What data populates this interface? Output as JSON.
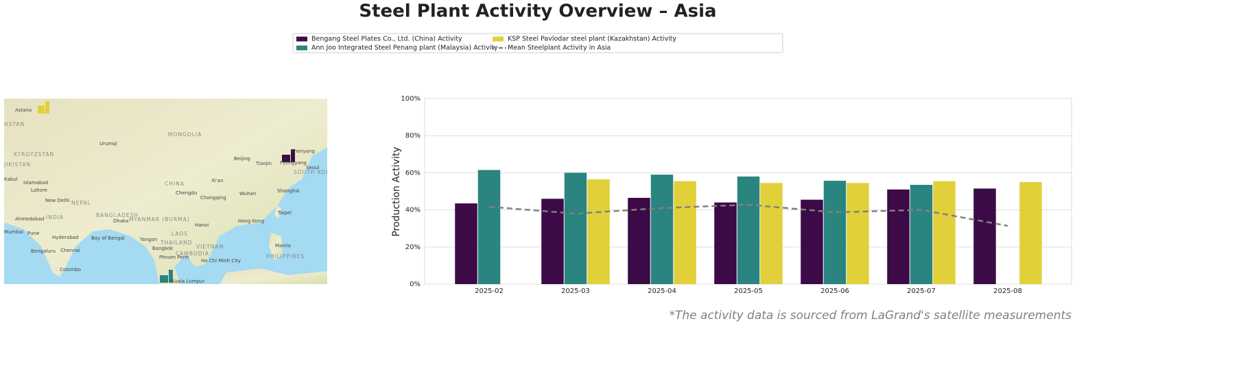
{
  "chart_data": {
    "type": "bar",
    "title": "Steel Plant Activity Overview – Asia",
    "ylabel": "Production Activity",
    "footnote": "*The activity data is sourced from LaGrand's satellite measurements",
    "categories": [
      "2025-02",
      "2025-03",
      "2025-04",
      "2025-05",
      "2025-06",
      "2025-07",
      "2025-08"
    ],
    "series": [
      {
        "name": "Bengang Steel Plates Co., Ltd. (China) Activity",
        "color": "#3c0a47",
        "values": [
          43.5,
          46,
          46.5,
          44,
          45.5,
          51,
          51.5
        ]
      },
      {
        "name": "Ann Joo Integrated Steel Penang plant (Malaysia) Activity",
        "color": "#2a8480",
        "values": [
          61.5,
          60,
          59,
          58,
          55.7,
          53.5,
          null
        ]
      },
      {
        "name": "KSP Steel Pavlodar steel plant (Kazakhstan) Activity",
        "color": "#e2d03a",
        "values": [
          null,
          56.5,
          55.5,
          54.5,
          54.5,
          55.5,
          55
        ]
      },
      {
        "name": "Mean Steelplant Activity in Asia",
        "type": "line",
        "color": "#808080",
        "dashed": true,
        "values": [
          41.7,
          38,
          41,
          42.8,
          38.7,
          40,
          31.4
        ]
      }
    ],
    "ylim": [
      0,
      100
    ],
    "yticks": [
      {
        "value": 0,
        "label": "0%"
      },
      {
        "value": 20,
        "label": "20%"
      },
      {
        "value": 40,
        "label": "40%"
      },
      {
        "value": 60,
        "label": "60%"
      },
      {
        "value": 80,
        "label": "80%"
      },
      {
        "value": 100,
        "label": "100%"
      }
    ],
    "grid": true,
    "legend": "top",
    "map_labels": [
      "Astana",
      "HSTAN",
      "Urumqi",
      "MONGOLIA",
      "KYRGYZSTAN",
      "JIKISTAN",
      "Beijing",
      "Tianjin",
      "Shenyang",
      "Pyongyang",
      "Seoul",
      "SOUTH KOR",
      "CHINA",
      "Xi'an",
      "Wuhan",
      "Shanghai",
      "Chengdu",
      "Chongqing",
      "Kabul",
      "Islamabad",
      "Lahore",
      "New Delhi",
      "NEPAL",
      "INDIA",
      "Ahmedabad",
      "Mumbai",
      "Pune",
      "Hyderabad",
      "Bengaluru",
      "Chennai",
      "Colombo",
      "BANGLADESH",
      "Dhaka",
      "MYANMAR (BURMA)",
      "Bay of Bengal",
      "Yangon",
      "THAILAND",
      "Bangkok",
      "LAOS",
      "VIETNAM",
      "Hanoi",
      "Hong Kong",
      "Taipei",
      "CAMBODIA",
      "Phnom Penh",
      "Ho Chi Minh City",
      "Manila",
      "PHILIPPINES",
      "Kuala Lumpur"
    ]
  }
}
